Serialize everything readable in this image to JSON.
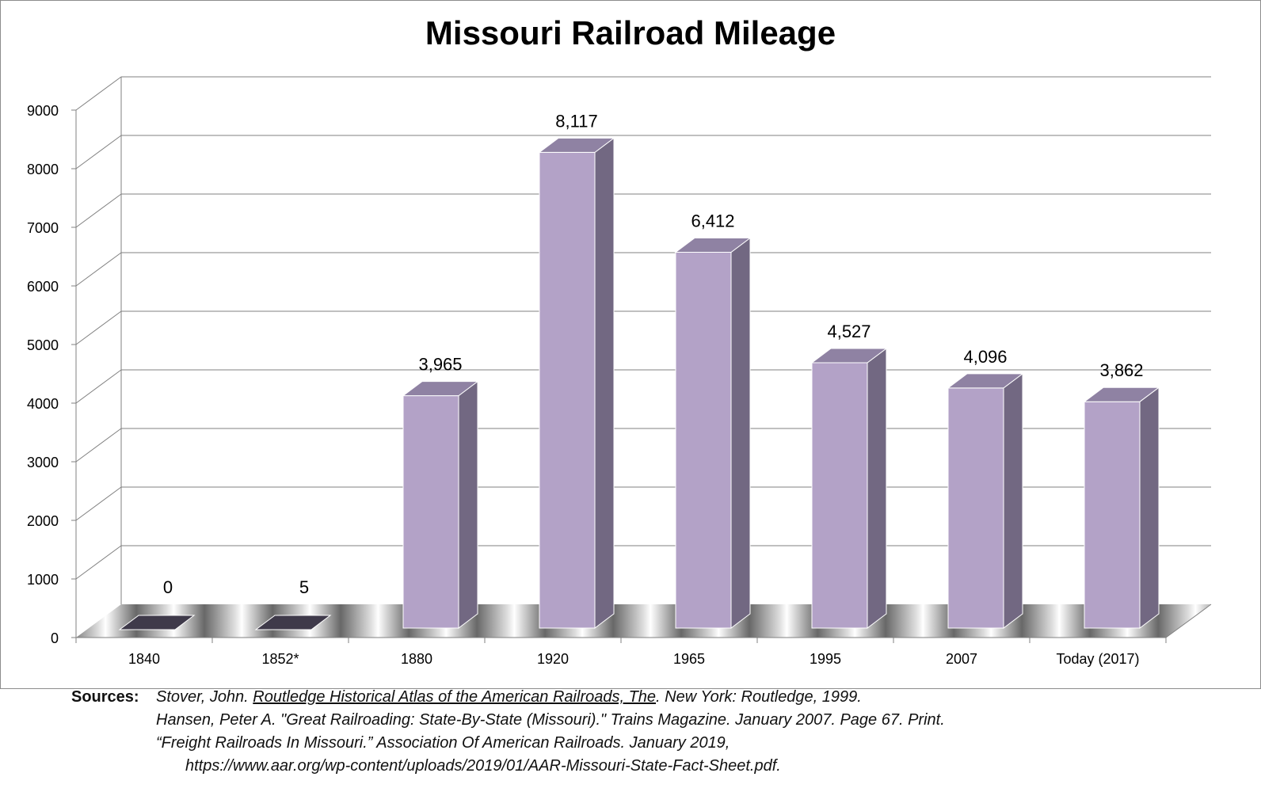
{
  "chart_data": {
    "type": "bar",
    "title": "Missouri Railroad Mileage",
    "xlabel": "",
    "ylabel": "",
    "categories": [
      "1840",
      "1852*",
      "1880",
      "1920",
      "1965",
      "1995",
      "2007",
      "Today  (2017)"
    ],
    "values": [
      0,
      5,
      3965,
      8117,
      6412,
      4527,
      4096,
      3862
    ],
    "value_labels": [
      "0",
      "5",
      "3,965",
      "8,117",
      "6,412",
      "4,527",
      "4,096",
      "3,862"
    ],
    "y_ticks": [
      "0",
      "1000",
      "2000",
      "3000",
      "4000",
      "5000",
      "6000",
      "7000",
      "8000",
      "9000"
    ],
    "ylim": [
      0,
      9000
    ],
    "grid": true,
    "legend": "none",
    "style": "3d-column",
    "colors": {
      "bar_front": "#b3a2c7",
      "bar_side": "#726882",
      "bar_top": "#8f82a3",
      "grid": "#808080",
      "floor_dark": "#4d4d4d",
      "floor_light": "#d9d9d9",
      "zero_bar": "#3f3a4a"
    }
  },
  "sources": {
    "label": "Sources:",
    "line1_pre": "Stover, John. ",
    "line1_title": "Routledge Historical Atlas of the American Railroads, The",
    "line1_post": ". New York: Routledge, 1999.",
    "line2": "Hansen, Peter A. \"Great Railroading: State-By-State (Missouri).\" Trains Magazine. January 2007. Page 67. Print.",
    "line3": "“Freight Railroads In Missouri.” Association Of American Railroads. January 2019,",
    "line4": "https://www.aar.org/wp-content/uploads/2019/01/AAR-Missouri-State-Fact-Sheet.pdf."
  }
}
